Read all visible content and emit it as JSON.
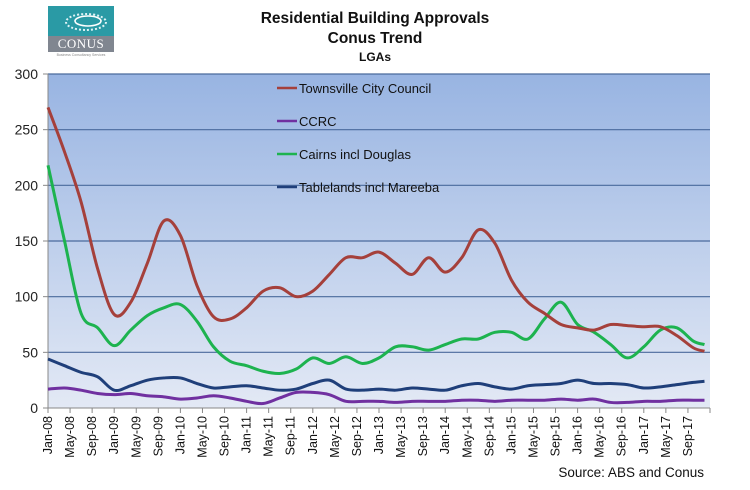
{
  "logo": {
    "name": "CONUS",
    "tagline": "Business Consultancy Services"
  },
  "source": "Source: ABS and Conus",
  "chart_data": {
    "type": "line",
    "title": "Residential Building Approvals",
    "subtitle": "Conus Trend",
    "subtitle2": "LGAs",
    "xlabel": "",
    "ylabel": "",
    "ylim": [
      0,
      300
    ],
    "yticks": [
      0,
      50,
      100,
      150,
      200,
      250,
      300
    ],
    "grid": true,
    "legend_position": "top-center",
    "x_months": [
      0,
      3,
      6,
      9,
      12,
      15,
      18,
      21,
      24,
      27,
      30,
      33,
      36,
      39,
      42,
      45,
      48,
      51,
      54,
      57,
      60,
      63,
      66,
      69,
      72,
      75,
      78,
      81,
      84,
      87,
      90,
      93,
      96,
      99,
      102,
      105,
      108,
      111,
      114,
      117,
      119
    ],
    "x_start": "Jan-08",
    "x_tick_labels": [
      "Jan-08",
      "May-08",
      "Sep-08",
      "Jan-09",
      "May-09",
      "Sep-09",
      "Jan-10",
      "May-10",
      "Sep-10",
      "Jan-11",
      "May-11",
      "Sep-11",
      "Jan-12",
      "May-12",
      "Sep-12",
      "Jan-13",
      "May-13",
      "Sep-13",
      "Jan-14",
      "May-14",
      "Sep-14",
      "Jan-15",
      "May-15",
      "Sep-15",
      "Jan-16",
      "May-16",
      "Sep-16",
      "Jan-17",
      "May-17",
      "Sep-17"
    ],
    "series": [
      {
        "name": "Townsville City Council",
        "color": "#a5403b",
        "values": [
          270,
          230,
          185,
          125,
          84,
          95,
          130,
          168,
          155,
          110,
          82,
          80,
          90,
          105,
          108,
          100,
          105,
          120,
          135,
          135,
          140,
          130,
          120,
          135,
          122,
          135,
          160,
          148,
          115,
          95,
          85,
          75,
          72,
          70,
          75,
          74,
          73,
          73,
          65,
          54,
          51
        ]
      },
      {
        "name": "CCRC",
        "color": "#7030a0",
        "values": [
          17,
          18,
          16,
          13,
          12,
          13,
          11,
          10,
          8,
          9,
          11,
          9,
          6,
          4,
          9,
          14,
          14,
          12,
          6,
          6,
          6,
          5,
          6,
          6,
          6,
          7,
          7,
          6,
          7,
          7,
          7,
          8,
          7,
          8,
          5,
          5,
          6,
          6,
          7,
          7,
          7
        ]
      },
      {
        "name": "Cairns incl Douglas",
        "color": "#1db34f",
        "values": [
          218,
          150,
          85,
          72,
          56,
          70,
          83,
          90,
          93,
          78,
          55,
          42,
          38,
          33,
          31,
          35,
          45,
          40,
          46,
          40,
          45,
          55,
          55,
          52,
          57,
          62,
          62,
          68,
          68,
          62,
          80,
          95,
          75,
          68,
          57,
          45,
          55,
          70,
          72,
          60,
          57
        ]
      },
      {
        "name": "Tablelands incl Mareeba",
        "color": "#1f3f7a",
        "values": [
          44,
          38,
          32,
          28,
          16,
          20,
          25,
          27,
          27,
          22,
          18,
          19,
          20,
          18,
          16,
          17,
          22,
          25,
          17,
          16,
          17,
          16,
          18,
          17,
          16,
          20,
          22,
          19,
          17,
          20,
          21,
          22,
          25,
          22,
          22,
          21,
          18,
          19,
          21,
          23,
          24
        ]
      }
    ]
  }
}
